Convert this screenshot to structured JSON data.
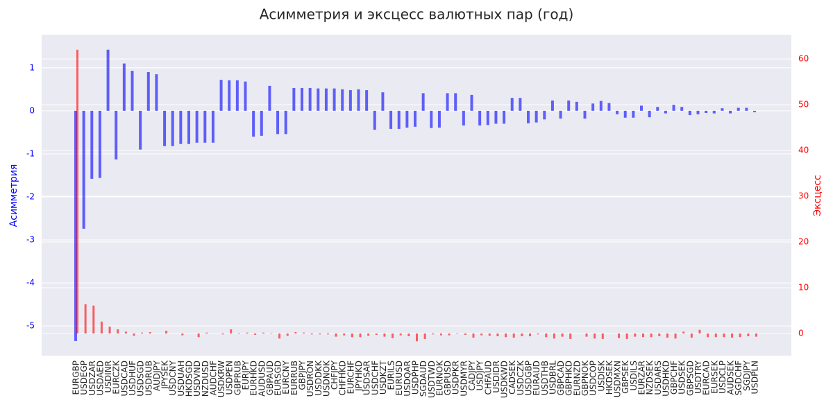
{
  "chart_data": {
    "type": "bar",
    "title": "Асимметрия и эксцесс валютных пар (год)",
    "y_label": "Асимметрия",
    "y2_label": "Эксцесс",
    "categories": [
      "EURGBP",
      "USDEGP",
      "USDZAR",
      "USDAED",
      "USDINR",
      "EURCZK",
      "USDCAD",
      "USDHUF",
      "USDSGD",
      "USDRUB",
      "AUDJPY",
      "JPYSEK",
      "USDCNY",
      "USDUAH",
      "HKDSGD",
      "USDVND",
      "NZDUSD",
      "AUDCHF",
      "USDKRW",
      "USDPEN",
      "GBPRUB",
      "EURJPY",
      "EURHKD",
      "AUDUSD",
      "GBPAUD",
      "EURSGD",
      "EURCNY",
      "EURRUB",
      "GBPJPY",
      "USDRON",
      "USDDKK",
      "USDNOK",
      "CHFJPY",
      "CHFHKD",
      "EURCHF",
      "JPYHKD",
      "USDSAR",
      "USDCHF",
      "USDKZT",
      "EURILS",
      "EURUSD",
      "USDQAR",
      "USDPHP",
      "SGDAUD",
      "USDTWD",
      "EURNOK",
      "GBPUSD",
      "USDPKR",
      "USDMYR",
      "CADJPY",
      "USDJPY",
      "CHFAUD",
      "USDIDR",
      "USDKWD",
      "CADSEK",
      "USDCZK",
      "USDGBP",
      "EURAUD",
      "USDTHB",
      "USDBRL",
      "GBPCAD",
      "GBPHKD",
      "EURNZD",
      "GBPNOK",
      "USDCOP",
      "USDISK",
      "HKDSEK",
      "USDMXN",
      "GBPSEK",
      "USDILS",
      "EURZAR",
      "NZDSEK",
      "USDARS",
      "USDHKD",
      "GBPCHF",
      "USDSEK",
      "GBPSGD",
      "USDTRY",
      "EURCAD",
      "EURSEK",
      "USDCLP",
      "AUDSEK",
      "SGDCHF",
      "SGDJPY",
      "USDPLN"
    ],
    "series": [
      {
        "color": "#0000ff",
        "axis": "y",
        "values": [
          -5.35,
          -2.74,
          -1.58,
          -1.56,
          1.42,
          -1.13,
          1.1,
          0.93,
          -0.9,
          0.9,
          0.85,
          -0.82,
          -0.82,
          -0.77,
          -0.77,
          -0.74,
          -0.74,
          -0.74,
          0.72,
          0.71,
          0.71,
          0.68,
          -0.6,
          -0.58,
          0.58,
          -0.54,
          -0.54,
          0.53,
          0.53,
          0.53,
          0.52,
          0.52,
          0.52,
          0.5,
          0.48,
          0.5,
          0.48,
          -0.44,
          0.43,
          -0.42,
          -0.42,
          -0.39,
          -0.37,
          0.41,
          -0.4,
          -0.39,
          0.41,
          0.41,
          -0.34,
          0.37,
          -0.34,
          -0.33,
          -0.3,
          -0.3,
          0.3,
          0.3,
          -0.29,
          -0.27,
          -0.2,
          0.24,
          -0.18,
          0.24,
          0.21,
          -0.18,
          0.17,
          0.23,
          0.18,
          -0.08,
          -0.16,
          -0.16,
          0.12,
          -0.15,
          0.09,
          -0.06,
          0.14,
          0.09,
          -0.1,
          -0.08,
          -0.05,
          -0.06,
          0.06,
          -0.06,
          0.07,
          0.07,
          -0.03
        ]
      },
      {
        "color": "#ff0000",
        "axis": "y2",
        "values": [
          62,
          6.4,
          6.1,
          2.6,
          1.5,
          0.9,
          0.4,
          -0.5,
          0.2,
          0.3,
          0,
          0.6,
          0,
          -0.4,
          0,
          -0.8,
          0.2,
          0,
          -0.2,
          0.9,
          0.1,
          0.2,
          -0.3,
          0.2,
          0.1,
          -1.1,
          -0.5,
          0.3,
          0.2,
          -0.2,
          -0.2,
          -0.2,
          -0.7,
          -0.4,
          -0.8,
          -0.8,
          -0.5,
          -0.3,
          -0.7,
          -1.0,
          -0.4,
          -0.6,
          -1.7,
          -1.2,
          -0.2,
          -0.4,
          -0.4,
          -0.1,
          -0.3,
          -0.9,
          -0.4,
          -0.5,
          -0.6,
          -0.8,
          -0.9,
          -0.6,
          -0.6,
          -0.2,
          -0.8,
          -1.1,
          -0.7,
          -1.2,
          0,
          -0.7,
          -1.1,
          -1.2,
          0,
          -1.0,
          -1.2,
          -0.7,
          -0.8,
          -0.8,
          -0.6,
          -0.9,
          -1.1,
          0.4,
          -0.9,
          0.8,
          -0.8,
          -0.8,
          -0.8,
          -0.9,
          -0.8,
          -0.6,
          -0.7
        ]
      }
    ],
    "ylim": [
      -5.69,
      1.77
    ],
    "yticks": [
      -5,
      -4,
      -3,
      -2,
      -1,
      0,
      1
    ],
    "y2lim": [
      -4.85,
      65.3
    ],
    "y2ticks": [
      0,
      10,
      20,
      30,
      40,
      50,
      60
    ],
    "grid": true
  }
}
